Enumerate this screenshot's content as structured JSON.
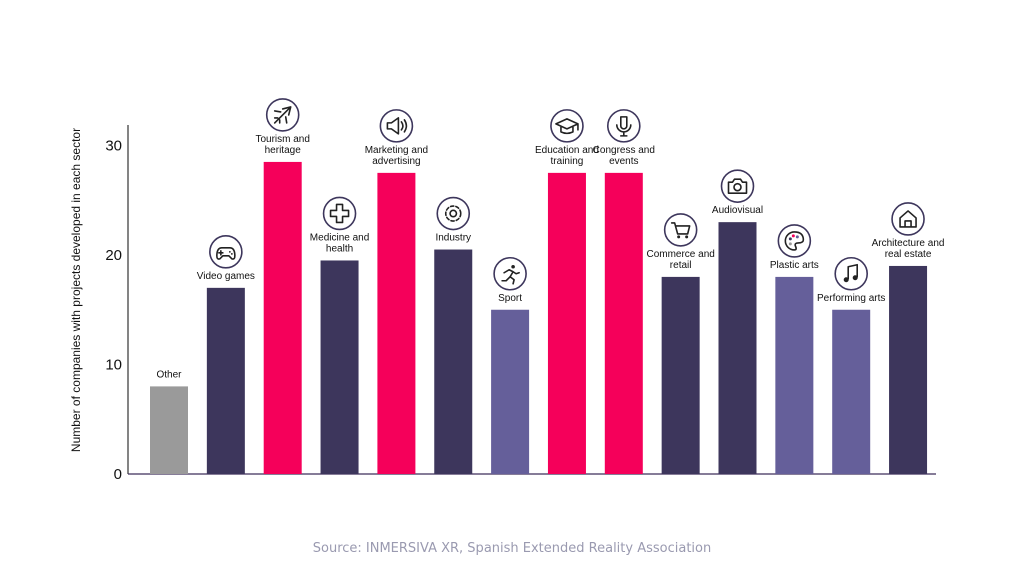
{
  "chart_data": {
    "type": "bar",
    "ylabel": "Number of companies with projects developed in each sector",
    "ylim": [
      0,
      32
    ],
    "yticks": [
      0,
      10,
      20,
      30
    ],
    "categories": [
      {
        "label": "Other",
        "value": 8,
        "color": "#9a9a9a",
        "icon": "none"
      },
      {
        "label": "Video games",
        "value": 17,
        "color": "#3d365c",
        "icon": "gamepad-icon"
      },
      {
        "label": "Tourism and heritage",
        "value": 28.5,
        "color": "#f5005a",
        "icon": "airplane-icon"
      },
      {
        "label": "Medicine and health",
        "value": 19.5,
        "color": "#3d365c",
        "icon": "medical-cross-icon"
      },
      {
        "label": "Marketing and advertising",
        "value": 27.5,
        "color": "#f5005a",
        "icon": "megaphone-icon"
      },
      {
        "label": "Industry",
        "value": 20.5,
        "color": "#3d365c",
        "icon": "gear-icon"
      },
      {
        "label": "Sport",
        "value": 15,
        "color": "#655f9a",
        "icon": "runner-icon"
      },
      {
        "label": "Education and training",
        "value": 27.5,
        "color": "#f5005a",
        "icon": "graduation-cap-icon"
      },
      {
        "label": "Congress and events",
        "value": 27.5,
        "color": "#f5005a",
        "icon": "microphone-icon"
      },
      {
        "label": "Commerce and retail",
        "value": 18,
        "color": "#3d365c",
        "icon": "shopping-cart-icon"
      },
      {
        "label": "Audiovisual",
        "value": 23,
        "color": "#3d365c",
        "icon": "camera-icon"
      },
      {
        "label": "Plastic arts",
        "value": 18,
        "color": "#655f9a",
        "icon": "palette-icon"
      },
      {
        "label": "Performing arts",
        "value": 15,
        "color": "#655f9a",
        "icon": "music-note-icon"
      },
      {
        "label": "Architecture and real estate",
        "value": 19,
        "color": "#3d365c",
        "icon": "house-icon"
      }
    ]
  },
  "footer": {
    "source": "Source: INMERSIVA XR, Spanish Extended Reality Association"
  }
}
